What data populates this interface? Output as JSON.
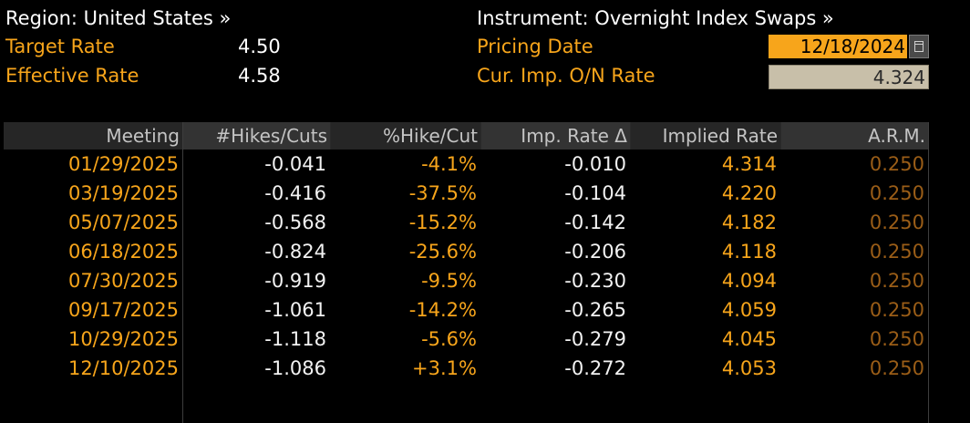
{
  "header": {
    "region_label": "Region: United States »",
    "instrument_label": "Instrument: Overnight Index Swaps »",
    "target_rate_label": "Target Rate",
    "target_rate_value": "4.50",
    "effective_rate_label": "Effective Rate",
    "effective_rate_value": "4.58",
    "pricing_date_label": "Pricing Date",
    "pricing_date_value": "12/18/2024",
    "cur_imp_label": "Cur. Imp. O/N Rate",
    "cur_imp_value": "4.324"
  },
  "table": {
    "columns": [
      "Meeting",
      "#Hikes/Cuts",
      "%Hike/Cut",
      "Imp. Rate Δ",
      "Implied Rate",
      "A.R.M."
    ],
    "rows": [
      [
        "01/29/2025",
        "-0.041",
        "-4.1%",
        "-0.010",
        "4.314",
        "0.250"
      ],
      [
        "03/19/2025",
        "-0.416",
        "-37.5%",
        "-0.104",
        "4.220",
        "0.250"
      ],
      [
        "05/07/2025",
        "-0.568",
        "-15.2%",
        "-0.142",
        "4.182",
        "0.250"
      ],
      [
        "06/18/2025",
        "-0.824",
        "-25.6%",
        "-0.206",
        "4.118",
        "0.250"
      ],
      [
        "07/30/2025",
        "-0.919",
        "-9.5%",
        "-0.230",
        "4.094",
        "0.250"
      ],
      [
        "09/17/2025",
        "-1.061",
        "-14.2%",
        "-0.265",
        "4.059",
        "0.250"
      ],
      [
        "10/29/2025",
        "-1.118",
        "-5.6%",
        "-0.279",
        "4.045",
        "0.250"
      ],
      [
        "12/10/2025",
        "-1.086",
        "+3.1%",
        "-0.272",
        "4.053",
        "0.250"
      ]
    ]
  },
  "icons": {
    "calendar": "calendar-icon"
  },
  "colors": {
    "accent": "#f7a51b",
    "text": "#ffffff",
    "arm_dim": "#9a5d17",
    "input_bg": "#c8bfa9"
  }
}
